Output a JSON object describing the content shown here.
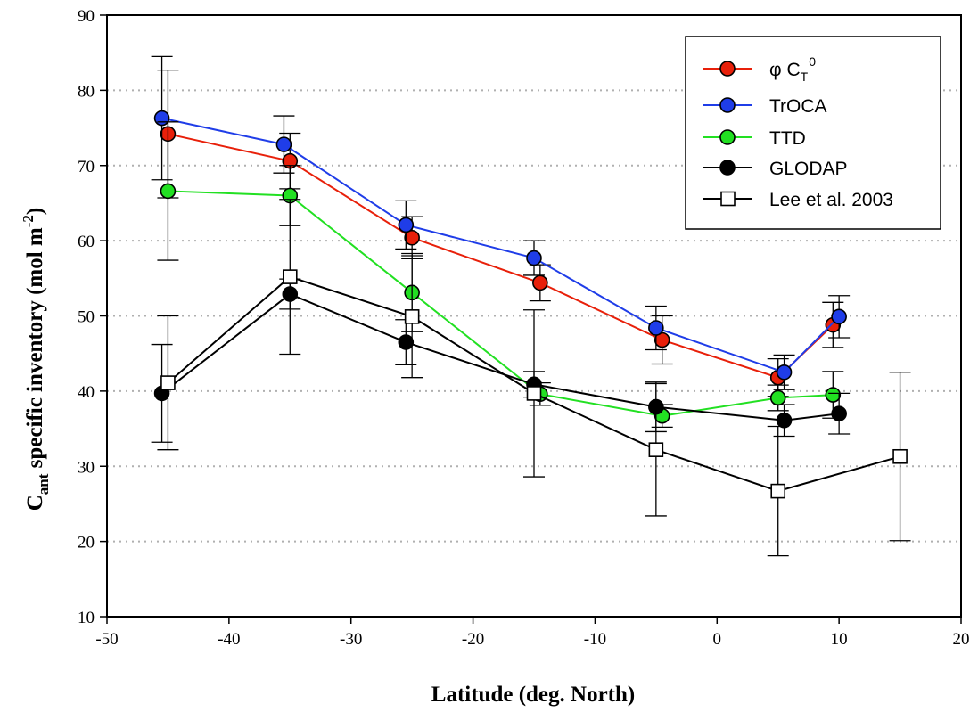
{
  "chart_data": {
    "type": "line",
    "xlabel": "Latitude (deg. North)",
    "ylabel": {
      "main": "C",
      "sub": "ant",
      "rest": " specific inventory (mol m",
      "sup": "-2",
      "end": ")"
    },
    "xlim": [
      -50,
      20
    ],
    "ylim": [
      10,
      90
    ],
    "xticks": [
      -50,
      -40,
      -30,
      -20,
      -10,
      0,
      10,
      20
    ],
    "yticks": [
      10,
      20,
      30,
      40,
      50,
      60,
      70,
      80,
      90
    ],
    "grid": "horizontal dotted",
    "legend_position": "top-right",
    "series": [
      {
        "name": "φ C_T^0",
        "label": {
          "main": "φ C",
          "sub": "T",
          "sup": "0"
        },
        "color": "#e8200a",
        "line_color": "#e8200a",
        "marker": "circle",
        "x": [
          -45,
          -35,
          -25,
          -14.5,
          -4.5,
          5,
          9.5
        ],
        "y": [
          74.2,
          70.6,
          60.4,
          54.4,
          46.8,
          41.8,
          48.8
        ],
        "err": [
          8.5,
          3.7,
          2.8,
          2.4,
          3.2,
          2.5,
          3.0
        ]
      },
      {
        "name": "TrOCA",
        "color": "#1f3de8",
        "line_color": "#1f3de8",
        "marker": "circle",
        "x": [
          -45.5,
          -35.5,
          -25.5,
          -15,
          -5,
          5.5,
          10
        ],
        "y": [
          76.3,
          72.8,
          62.1,
          57.7,
          48.4,
          42.5,
          49.9
        ],
        "err": [
          8.2,
          3.8,
          3.2,
          2.3,
          2.9,
          2.3,
          2.8
        ]
      },
      {
        "name": "TTD",
        "color": "#22e022",
        "line_color": "#22e022",
        "marker": "circle",
        "x": [
          -45,
          -35,
          -25,
          -14.5,
          -4.5,
          5,
          9.5
        ],
        "y": [
          66.6,
          66.0,
          53.1,
          39.6,
          36.7,
          39.1,
          39.5
        ],
        "err": [
          9.2,
          4.0,
          5.2,
          1.5,
          1.5,
          1.7,
          3.1
        ]
      },
      {
        "name": "GLODAP",
        "color": "#000000",
        "line_color": "#000000",
        "marker": "circle",
        "x": [
          -45.5,
          -35,
          -25.5,
          -15,
          -5,
          5.5,
          10
        ],
        "y": [
          39.7,
          52.9,
          46.5,
          40.9,
          37.9,
          36.1,
          37.0
        ],
        "err": [
          6.5,
          2.0,
          3.0,
          1.7,
          3.3,
          2.1,
          2.7
        ]
      },
      {
        "name": "Lee et al. 2003",
        "color": "#000000",
        "line_color": "#000000",
        "marker": "square",
        "x": [
          -45,
          -35,
          -25,
          -15,
          -5,
          5,
          15
        ],
        "y": [
          41.1,
          55.2,
          49.9,
          39.7,
          32.2,
          26.7,
          31.3
        ],
        "err": [
          8.9,
          10.3,
          8.1,
          11.1,
          8.8,
          8.6,
          11.2
        ]
      }
    ]
  }
}
